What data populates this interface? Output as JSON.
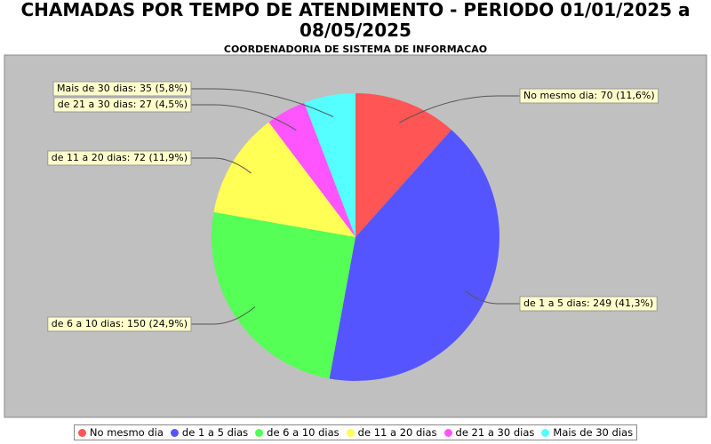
{
  "chart_data": {
    "type": "pie",
    "title": "CHAMADAS POR TEMPO DE ATENDIMENTO - PERIODO 01/01/2025 a 08/05/2025",
    "subtitle": "COORDENADORIA DE SISTEMA DE INFORMACAO",
    "categories": [
      "No mesmo dia",
      "de 1 a 5 dias",
      "de 6 a 10 dias",
      "de 11 a 20 dias",
      "de 21 a 30 dias",
      "Mais de 30 dias"
    ],
    "values": [
      70,
      249,
      150,
      72,
      27,
      35
    ],
    "value_labels": [
      "No mesmo dia: 70 (11,6%)",
      "de 1 a 5 dias: 249 (41,3%)",
      "de 6 a 10 dias: 150 (24,9%)",
      "de 11 a 20 dias: 72 (11,9%)",
      "de 21 a 30 dias: 27 (4,5%)",
      "Mais de 30 dias: 35 (5,8%)"
    ],
    "colors": [
      "#ff5555",
      "#5555ff",
      "#55ff55",
      "#ffff55",
      "#ff55ff",
      "#55ffff"
    ],
    "legend": "bottom"
  }
}
